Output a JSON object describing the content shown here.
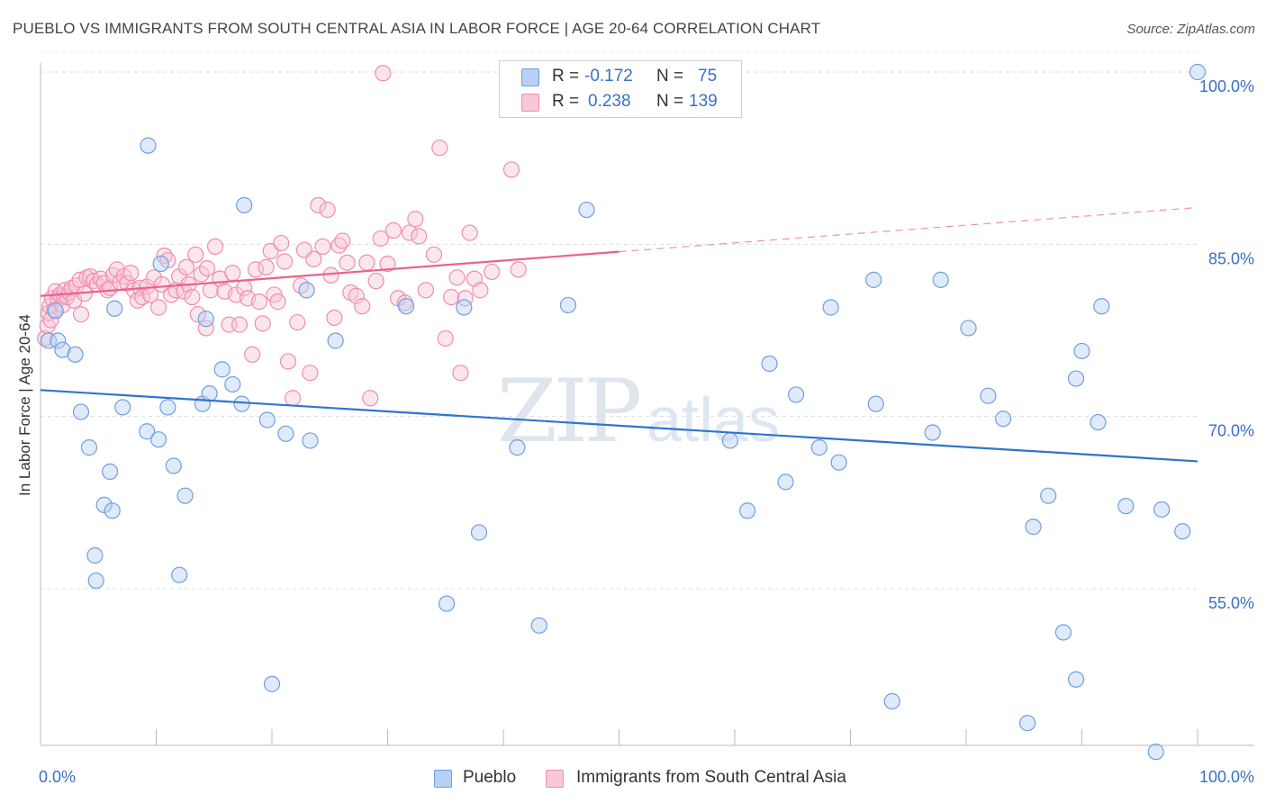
{
  "header": {
    "title": "PUEBLO VS IMMIGRANTS FROM SOUTH CENTRAL ASIA IN LABOR FORCE | AGE 20-64 CORRELATION CHART",
    "source": "Source: ZipAtlas.com"
  },
  "watermark": {
    "zip": "ZIP",
    "atlas": "atlas"
  },
  "stats_box": {
    "rows": [
      {
        "r_label": "R =",
        "r_value": "-0.172",
        "n_label": "N =",
        "n_value": "75",
        "color": "#6f9fe0"
      },
      {
        "r_label": "R =",
        "r_value": "0.238",
        "n_label": "N =",
        "n_value": "139",
        "color": "#f08db0"
      }
    ]
  },
  "legend": {
    "items": [
      {
        "label": "Pueblo",
        "color": "#6f9fe0"
      },
      {
        "label": "Immigrants from South Central Asia",
        "color": "#f08db0"
      }
    ]
  },
  "colors": {
    "blue_stroke": "#6f9fe0",
    "blue_fill": "#b7d0f3",
    "blue_line": "#2f74d0",
    "pink_stroke": "#f08db0",
    "pink_fill": "#f9c8d8",
    "pink_line": "#e8628c",
    "tick_text": "#3a6fc8",
    "grid": "#dddddd"
  },
  "chart_data": {
    "type": "scatter",
    "title": "PUEBLO VS IMMIGRANTS FROM SOUTH CENTRAL ASIA IN LABOR FORCE | AGE 20-64 CORRELATION CHART",
    "xlabel": "",
    "ylabel": "In Labor Force | Age 20-64",
    "xlim": [
      0,
      100
    ],
    "ylim": [
      40,
      102
    ],
    "x_tick_labels": [
      "0.0%",
      "100.0%"
    ],
    "y_ticks": [
      55,
      70,
      85,
      100
    ],
    "y_tick_labels": [
      "55.0%",
      "70.0%",
      "85.0%",
      "100.0%"
    ],
    "grid": true,
    "legend_position": "bottom-center",
    "series": [
      {
        "name": "Pueblo",
        "color": "#6f9fe0",
        "trend": {
          "x": [
            0,
            100
          ],
          "y": [
            72.3,
            66.1
          ],
          "dashed_from": null
        },
        "points": [
          [
            0.7,
            76.6
          ],
          [
            1.3,
            79.2
          ],
          [
            1.5,
            76.6
          ],
          [
            1.9,
            75.8
          ],
          [
            3.0,
            75.4
          ],
          [
            3.5,
            70.4
          ],
          [
            4.2,
            67.3
          ],
          [
            4.7,
            57.9
          ],
          [
            4.8,
            55.7
          ],
          [
            5.5,
            62.3
          ],
          [
            6.0,
            65.2
          ],
          [
            6.2,
            61.8
          ],
          [
            6.4,
            79.4
          ],
          [
            7.1,
            70.8
          ],
          [
            9.3,
            93.6
          ],
          [
            9.2,
            68.7
          ],
          [
            10.2,
            68.0
          ],
          [
            10.4,
            83.3
          ],
          [
            11.0,
            70.8
          ],
          [
            11.5,
            65.7
          ],
          [
            12.0,
            56.2
          ],
          [
            12.5,
            63.1
          ],
          [
            14.0,
            71.1
          ],
          [
            14.3,
            78.5
          ],
          [
            14.6,
            72.0
          ],
          [
            15.7,
            74.1
          ],
          [
            16.6,
            72.8
          ],
          [
            17.4,
            71.1
          ],
          [
            17.6,
            88.4
          ],
          [
            19.6,
            69.7
          ],
          [
            20.0,
            46.7
          ],
          [
            21.2,
            68.5
          ],
          [
            23.0,
            81.0
          ],
          [
            23.3,
            67.9
          ],
          [
            25.5,
            76.6
          ],
          [
            31.6,
            79.6
          ],
          [
            35.1,
            53.7
          ],
          [
            36.6,
            79.5
          ],
          [
            37.9,
            59.9
          ],
          [
            41.2,
            67.3
          ],
          [
            43.1,
            51.8
          ],
          [
            45.6,
            79.7
          ],
          [
            47.2,
            88.0
          ],
          [
            59.6,
            67.9
          ],
          [
            61.1,
            61.8
          ],
          [
            63.0,
            74.6
          ],
          [
            64.4,
            64.3
          ],
          [
            65.3,
            71.9
          ],
          [
            67.3,
            67.3
          ],
          [
            68.3,
            79.5
          ],
          [
            69.0,
            66.0
          ],
          [
            72.0,
            81.9
          ],
          [
            72.2,
            71.1
          ],
          [
            73.6,
            45.2
          ],
          [
            77.1,
            68.6
          ],
          [
            77.8,
            81.9
          ],
          [
            80.2,
            77.7
          ],
          [
            81.9,
            71.8
          ],
          [
            83.2,
            69.8
          ],
          [
            85.3,
            43.3
          ],
          [
            85.8,
            60.4
          ],
          [
            87.1,
            63.1
          ],
          [
            88.4,
            51.2
          ],
          [
            89.5,
            47.1
          ],
          [
            89.5,
            73.3
          ],
          [
            90.0,
            75.7
          ],
          [
            91.4,
            69.5
          ],
          [
            91.7,
            79.6
          ],
          [
            93.8,
            62.2
          ],
          [
            96.4,
            40.8
          ],
          [
            96.9,
            61.9
          ],
          [
            98.7,
            60.0
          ],
          [
            100.0,
            100.0
          ]
        ]
      },
      {
        "name": "Immigrants from South Central Asia",
        "color": "#f08db0",
        "trend": {
          "x": [
            0,
            100
          ],
          "y": [
            80.5,
            88.2
          ],
          "dashed_from": 50
        },
        "points": [
          [
            0.4,
            76.8
          ],
          [
            0.6,
            77.9
          ],
          [
            0.7,
            79.0
          ],
          [
            0.8,
            79.6
          ],
          [
            0.9,
            78.4
          ],
          [
            1.0,
            80.3
          ],
          [
            1.2,
            79.3
          ],
          [
            1.3,
            80.9
          ],
          [
            1.5,
            80.2
          ],
          [
            1.7,
            80.6
          ],
          [
            1.9,
            79.7
          ],
          [
            2.0,
            80.5
          ],
          [
            2.1,
            81.0
          ],
          [
            2.3,
            80.4
          ],
          [
            2.5,
            80.8
          ],
          [
            2.7,
            81.2
          ],
          [
            2.9,
            80.1
          ],
          [
            3.1,
            81.4
          ],
          [
            3.4,
            81.9
          ],
          [
            3.5,
            78.9
          ],
          [
            3.8,
            80.7
          ],
          [
            4.0,
            82.1
          ],
          [
            4.3,
            82.2
          ],
          [
            4.6,
            81.8
          ],
          [
            4.9,
            81.5
          ],
          [
            5.2,
            82.0
          ],
          [
            5.5,
            81.6
          ],
          [
            5.8,
            81.0
          ],
          [
            6.0,
            81.2
          ],
          [
            6.3,
            82.3
          ],
          [
            6.6,
            82.8
          ],
          [
            6.9,
            81.7
          ],
          [
            7.2,
            82.2
          ],
          [
            7.5,
            81.6
          ],
          [
            7.8,
            82.5
          ],
          [
            8.1,
            81.0
          ],
          [
            8.4,
            80.1
          ],
          [
            8.6,
            81.2
          ],
          [
            8.8,
            80.4
          ],
          [
            9.2,
            81.3
          ],
          [
            9.5,
            80.6
          ],
          [
            9.8,
            82.1
          ],
          [
            10.2,
            79.5
          ],
          [
            10.5,
            81.5
          ],
          [
            10.7,
            84.0
          ],
          [
            11.0,
            83.6
          ],
          [
            11.3,
            80.6
          ],
          [
            11.7,
            81.0
          ],
          [
            12.0,
            82.2
          ],
          [
            12.4,
            80.9
          ],
          [
            12.6,
            83.0
          ],
          [
            12.8,
            81.5
          ],
          [
            13.1,
            80.4
          ],
          [
            13.4,
            84.1
          ],
          [
            13.6,
            78.9
          ],
          [
            13.9,
            82.4
          ],
          [
            14.3,
            77.7
          ],
          [
            14.4,
            82.9
          ],
          [
            14.7,
            81.0
          ],
          [
            15.1,
            84.8
          ],
          [
            15.5,
            82.0
          ],
          [
            15.9,
            80.9
          ],
          [
            16.3,
            78.0
          ],
          [
            16.6,
            82.5
          ],
          [
            16.9,
            80.6
          ],
          [
            17.2,
            78.0
          ],
          [
            17.6,
            81.2
          ],
          [
            17.9,
            80.3
          ],
          [
            18.3,
            75.4
          ],
          [
            18.6,
            82.8
          ],
          [
            18.9,
            80.0
          ],
          [
            19.2,
            78.1
          ],
          [
            19.5,
            83.0
          ],
          [
            19.9,
            84.4
          ],
          [
            20.2,
            80.6
          ],
          [
            20.5,
            80.0
          ],
          [
            20.8,
            85.1
          ],
          [
            21.1,
            83.5
          ],
          [
            21.4,
            74.8
          ],
          [
            21.8,
            71.6
          ],
          [
            22.2,
            78.2
          ],
          [
            22.5,
            81.4
          ],
          [
            22.8,
            84.5
          ],
          [
            23.3,
            73.8
          ],
          [
            23.6,
            83.7
          ],
          [
            24.0,
            88.4
          ],
          [
            24.4,
            84.8
          ],
          [
            24.8,
            88.0
          ],
          [
            25.1,
            82.3
          ],
          [
            25.4,
            78.6
          ],
          [
            25.8,
            84.9
          ],
          [
            26.1,
            85.3
          ],
          [
            26.5,
            83.4
          ],
          [
            26.8,
            80.8
          ],
          [
            27.3,
            80.5
          ],
          [
            27.8,
            79.6
          ],
          [
            28.2,
            83.4
          ],
          [
            28.5,
            71.6
          ],
          [
            29.0,
            81.8
          ],
          [
            29.4,
            85.5
          ],
          [
            30.0,
            83.3
          ],
          [
            30.5,
            86.2
          ],
          [
            30.9,
            80.3
          ],
          [
            31.5,
            79.9
          ],
          [
            31.9,
            86.0
          ],
          [
            32.4,
            87.2
          ],
          [
            32.7,
            85.7
          ],
          [
            33.3,
            81.0
          ],
          [
            34.0,
            84.1
          ],
          [
            34.5,
            93.4
          ],
          [
            35.0,
            76.8
          ],
          [
            35.5,
            80.4
          ],
          [
            36.0,
            82.1
          ],
          [
            36.3,
            73.8
          ],
          [
            36.7,
            80.3
          ],
          [
            37.1,
            86.0
          ],
          [
            37.5,
            82.0
          ],
          [
            38.0,
            81.0
          ],
          [
            39.0,
            82.6
          ],
          [
            40.7,
            91.5
          ],
          [
            41.3,
            82.8
          ],
          [
            29.6,
            99.9
          ]
        ]
      }
    ]
  }
}
